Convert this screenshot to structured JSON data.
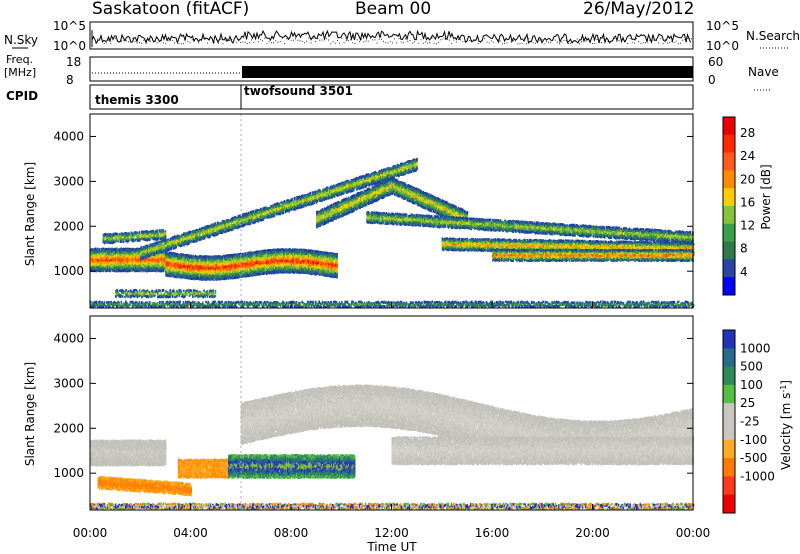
{
  "header": {
    "station": "Saskatoon (fitACF)",
    "beam": "Beam 00",
    "date": "26/May/2012"
  },
  "strips": {
    "nsky_label": "N.Sky",
    "nsearch_label": "N.Search",
    "nsky_ticks": [
      "10^5",
      "10^0"
    ],
    "nsearch_ticks": [
      "10^5",
      "10^0"
    ],
    "freq_label_line1": "Freq.",
    "freq_label_line2": "[MHz]",
    "freq_ticks": [
      "18",
      "8"
    ],
    "nave_label": "Nave",
    "nave_ticks": [
      "60",
      "0"
    ],
    "cpid_label": "CPID",
    "cpid_entries": [
      "themis 3300",
      "twofsound 3501"
    ]
  },
  "panels": {
    "ylabel": "Slant Range [km]",
    "y_ticks": [
      "1000",
      "2000",
      "3000",
      "4000"
    ],
    "x_ticks": [
      "00:00",
      "04:00",
      "08:00",
      "12:00",
      "16:00",
      "20:00",
      "00:00"
    ],
    "xlabel": "Time UT"
  },
  "power_scale": {
    "label": "Power [dB]",
    "ticks": [
      "4",
      "8",
      "12",
      "16",
      "20",
      "24",
      "28"
    ],
    "colors": [
      "#0000ff",
      "#2a44a8",
      "#2f7a4a",
      "#3aa04a",
      "#88c23a",
      "#ffcc00",
      "#ff8c00",
      "#ff5a1e",
      "#ff2a00",
      "#ee0000"
    ]
  },
  "velocity_scale": {
    "label": "Velocity [m s",
    "label_sup": "-1",
    "label_end": "]",
    "ticks": [
      "1000",
      "500",
      "100",
      "25",
      "-25",
      "-100",
      "-500",
      "-1000"
    ],
    "colors": [
      "#2233bb",
      "#2a6a8a",
      "#2f8a5a",
      "#55c040",
      "#c8c8c0",
      "#c8c8c0",
      "#ffaa22",
      "#ff7a00",
      "#ff3a1a",
      "#ee0000"
    ]
  },
  "chart_data": {
    "type": "heatmap",
    "time_range_hours": [
      0,
      24
    ],
    "range_km_ylim": [
      180,
      4500
    ],
    "cpid_switch_hour": 6,
    "panels": [
      "Power [dB]",
      "Velocity [m s-1]"
    ]
  }
}
